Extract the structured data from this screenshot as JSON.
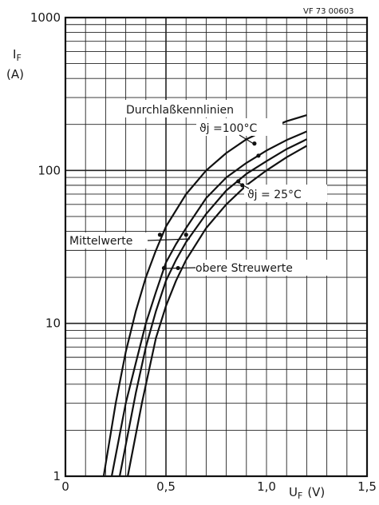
{
  "chart_data": {
    "type": "line",
    "reference_code": "VF 73 00603",
    "title": "Durchlaßkennlinien",
    "ylabel_symbol": "I",
    "ylabel_sub": "F",
    "ylabel_unit": "(A)",
    "xlabel_symbol": "U",
    "xlabel_sub": "F",
    "xlabel_unit": "(V)",
    "xlim": [
      0,
      1.5
    ],
    "ylim": [
      1,
      1000
    ],
    "yscale": "log",
    "grid": true,
    "x_ticks": [
      {
        "value": 0,
        "label": "0"
      },
      {
        "value": 0.5,
        "label": "0,5"
      },
      {
        "value": 1.0,
        "label": "1,0"
      },
      {
        "value": 1.5,
        "label": "1,5"
      }
    ],
    "y_ticks": [
      {
        "value": 1,
        "label": "1"
      },
      {
        "value": 10,
        "label": "10"
      },
      {
        "value": 100,
        "label": "100"
      },
      {
        "value": 1000,
        "label": "1000"
      }
    ],
    "series": [
      {
        "x": [
          0.19,
          0.25,
          0.3,
          0.35,
          0.4,
          0.45,
          0.5,
          0.6,
          0.7,
          0.8,
          0.9,
          1.0,
          1.1,
          1.2
        ],
        "y": [
          1,
          3,
          6.5,
          12,
          20,
          30,
          43,
          70,
          100,
          130,
          160,
          185,
          210,
          230
        ]
      },
      {
        "x": [
          0.23,
          0.3,
          0.35,
          0.4,
          0.45,
          0.5,
          0.55,
          0.6,
          0.7,
          0.8,
          0.9,
          1.0,
          1.1,
          1.2
        ],
        "y": [
          1,
          3,
          5.5,
          10,
          16,
          25,
          33,
          42,
          66,
          90,
          112,
          135,
          158,
          180
        ]
      },
      {
        "x": [
          0.27,
          0.35,
          0.4,
          0.45,
          0.5,
          0.55,
          0.6,
          0.7,
          0.8,
          0.9,
          1.0,
          1.1,
          1.2
        ],
        "y": [
          1,
          3.5,
          7,
          12,
          19,
          26,
          34,
          52,
          74,
          95,
          115,
          138,
          160
        ]
      },
      {
        "x": [
          0.31,
          0.38,
          0.45,
          0.5,
          0.55,
          0.6,
          0.7,
          0.8,
          0.9,
          1.0,
          1.1,
          1.2
        ],
        "y": [
          1,
          3,
          8,
          13,
          19,
          26,
          42,
          60,
          80,
          100,
          122,
          145
        ]
      }
    ],
    "annotations": {
      "temp_high": "ϑj =100°C",
      "temp_low": "ϑj = 25°C",
      "mean_values": "Mittelwerte",
      "upper_spread": "obere Streuwerte"
    }
  }
}
